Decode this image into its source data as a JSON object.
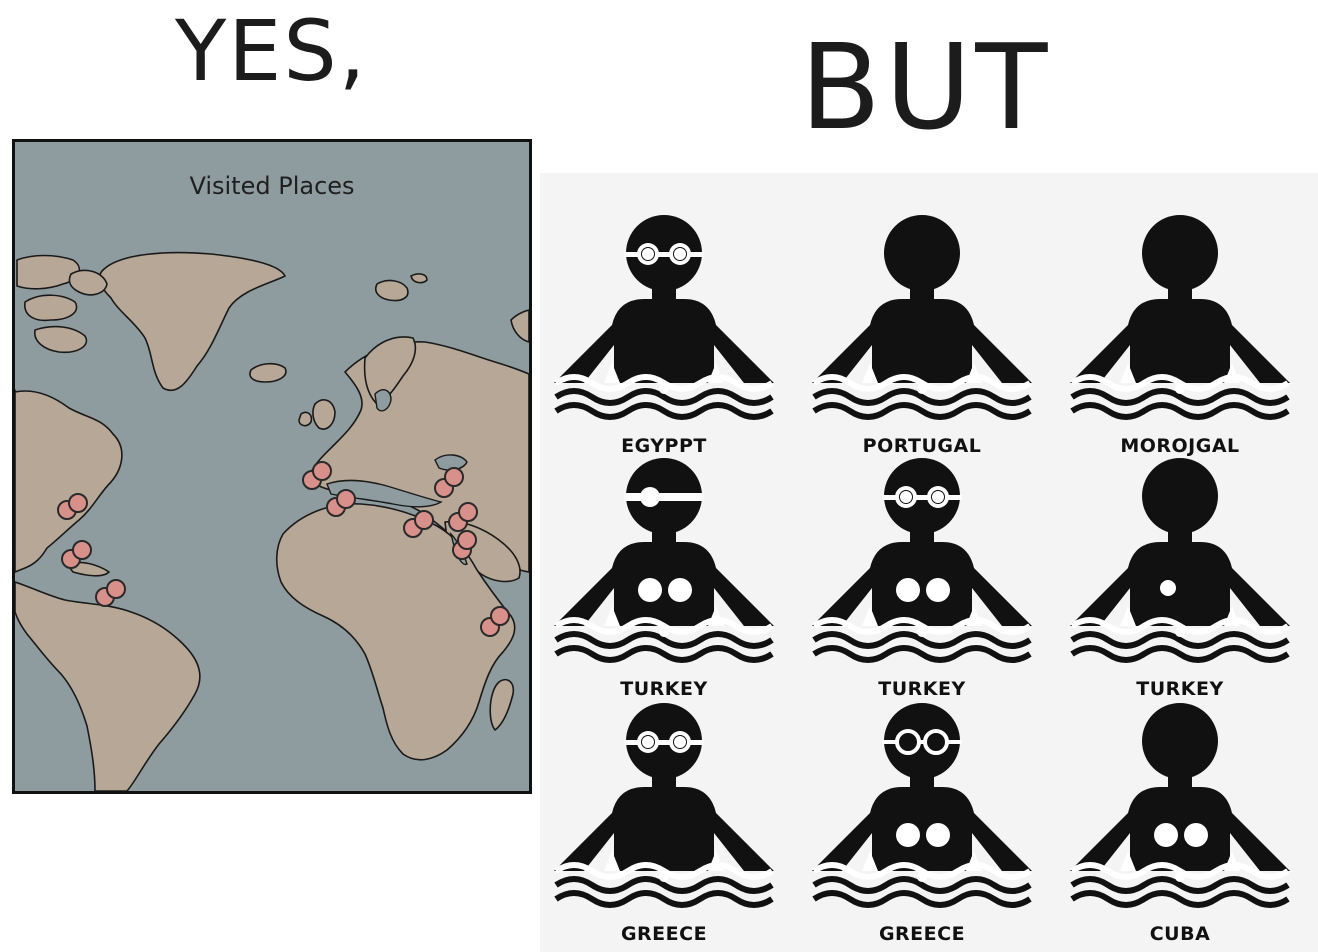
{
  "header": {
    "left": "YES,",
    "right": "BUT"
  },
  "map": {
    "title": "Visited Places",
    "colors": {
      "ocean": "#8e9c9f",
      "land": "#b7a796",
      "pin": "#d8908a",
      "outline": "#1a1a1a"
    },
    "pin_icon": "map-pin-icon"
  },
  "grid": {
    "icon": "swimmer-icon",
    "cells": [
      {
        "label": "EGYPPT",
        "goggles": "solid",
        "bubbles": 0
      },
      {
        "label": "PORTUGAL",
        "goggles": "none",
        "bubbles": 0
      },
      {
        "label": "MOROJGAL",
        "goggles": "none",
        "bubbles": 0
      },
      {
        "label": "TURKEY",
        "goggles": "band",
        "bubbles": 2
      },
      {
        "label": "TURKEY",
        "goggles": "solid",
        "bubbles": 2
      },
      {
        "label": "TURKEY",
        "goggles": "none",
        "bubbles": 1
      },
      {
        "label": "GREECE",
        "goggles": "solid",
        "bubbles": 0
      },
      {
        "label": "GREECE",
        "goggles": "ring",
        "bubbles": 2
      },
      {
        "label": "CUBA",
        "goggles": "none",
        "bubbles": 2
      }
    ]
  }
}
